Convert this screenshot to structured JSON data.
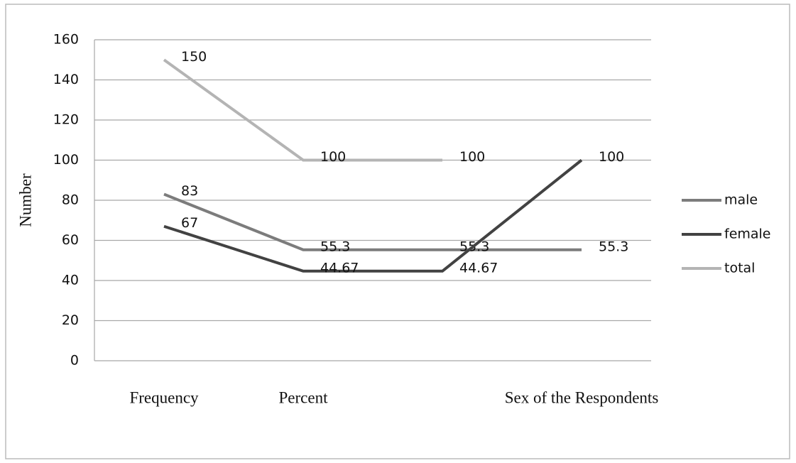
{
  "chart_data": {
    "type": "line",
    "categories": [
      "Frequency",
      "Percent",
      null,
      "Sex of the Respondents"
    ],
    "series": [
      {
        "name": "male",
        "color": "#7c7c7c",
        "values": [
          83,
          55.3,
          55.3,
          55.3
        ]
      },
      {
        "name": "female",
        "color": "#424242",
        "values": [
          67,
          44.67,
          44.67,
          100
        ]
      },
      {
        "name": "total",
        "color": "#b4b4b4",
        "values": [
          150,
          100,
          100,
          null
        ]
      }
    ],
    "y_label": "Number",
    "ylim": [
      0,
      160
    ],
    "yticks": [
      0,
      20,
      40,
      60,
      80,
      100,
      120,
      140,
      160
    ],
    "grid": true,
    "legend": "right"
  }
}
